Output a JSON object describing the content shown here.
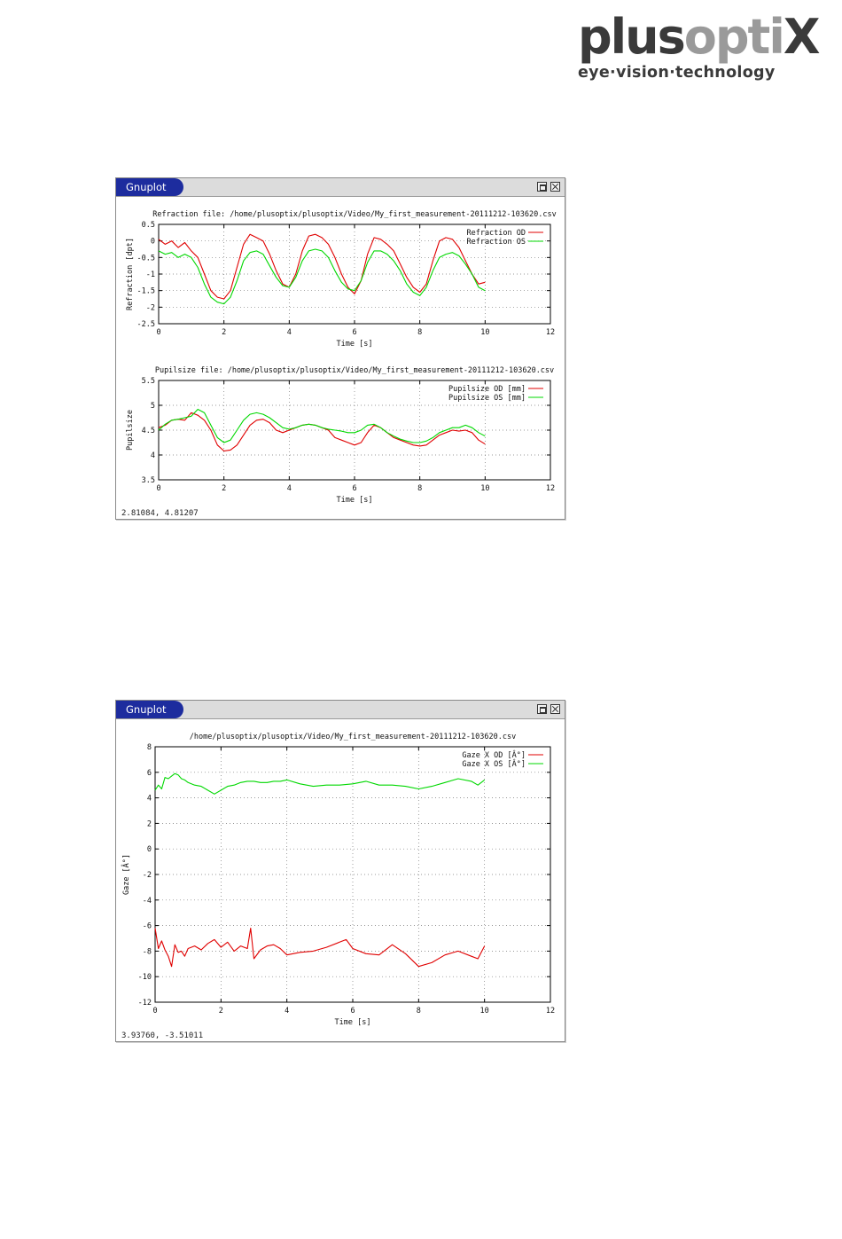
{
  "logo": {
    "main_dark": "plus",
    "main_light": "opti",
    "main_end": "X",
    "tagline": "eye·vision·technology"
  },
  "windows": [
    {
      "title": "Gnuplot",
      "coord_readout": "2.81084,  4.81207"
    },
    {
      "title": "Gnuplot",
      "coord_readout": "3.93760, -3.51011"
    }
  ],
  "colors": {
    "series_od": "#e00000",
    "series_os": "#00d800",
    "title_tab": "#1d2c9e"
  },
  "chart_data": [
    {
      "type": "line",
      "title": "Refraction file: /home/plusoptix/plusoptix/Video/My_first_measurement-20111212-103620.csv",
      "xlabel": "Time [s]",
      "ylabel": "Refraction [dpt]",
      "xlim": [
        0,
        12
      ],
      "ylim": [
        -2.5,
        0.5
      ],
      "xticks": [
        0,
        2,
        4,
        6,
        8,
        10,
        12
      ],
      "yticks": [
        -2.5,
        -2,
        -1.5,
        -1,
        -0.5,
        0,
        0.5
      ],
      "ytick_labels": [
        "-2.5",
        "-2",
        "-1.5",
        "-1",
        "-0.5",
        "0",
        "0.5"
      ],
      "grid": true,
      "legend": "top-right",
      "series": [
        {
          "name": "Refraction OD",
          "color": "#e00000",
          "x": [
            0,
            0.2,
            0.4,
            0.6,
            0.8,
            1.0,
            1.2,
            1.4,
            1.6,
            1.8,
            2.0,
            2.2,
            2.4,
            2.6,
            2.8,
            3.0,
            3.2,
            3.4,
            3.6,
            3.8,
            4.0,
            4.2,
            4.4,
            4.6,
            4.8,
            5.0,
            5.2,
            5.4,
            5.6,
            5.8,
            6.0,
            6.2,
            6.4,
            6.6,
            6.8,
            7.0,
            7.2,
            7.4,
            7.6,
            7.8,
            8.0,
            8.2,
            8.4,
            8.6,
            8.8,
            9.0,
            9.2,
            9.4,
            9.6,
            9.8,
            10.0
          ],
          "y": [
            0.05,
            -0.1,
            0.0,
            -0.2,
            -0.05,
            -0.3,
            -0.5,
            -1.0,
            -1.5,
            -1.7,
            -1.75,
            -1.5,
            -0.8,
            -0.1,
            0.2,
            0.1,
            0.0,
            -0.4,
            -0.9,
            -1.3,
            -1.4,
            -1.0,
            -0.3,
            0.15,
            0.2,
            0.1,
            -0.1,
            -0.5,
            -1.0,
            -1.4,
            -1.6,
            -1.2,
            -0.4,
            0.1,
            0.05,
            -0.1,
            -0.3,
            -0.7,
            -1.1,
            -1.4,
            -1.55,
            -1.3,
            -0.6,
            0.0,
            0.1,
            0.05,
            -0.2,
            -0.6,
            -1.0,
            -1.3,
            -1.25
          ]
        },
        {
          "name": "Refraction OS",
          "color": "#00d800",
          "x": [
            0,
            0.2,
            0.4,
            0.6,
            0.8,
            1.0,
            1.2,
            1.4,
            1.6,
            1.8,
            2.0,
            2.2,
            2.4,
            2.6,
            2.8,
            3.0,
            3.2,
            3.4,
            3.6,
            3.8,
            4.0,
            4.2,
            4.4,
            4.6,
            4.8,
            5.0,
            5.2,
            5.4,
            5.6,
            5.8,
            6.0,
            6.2,
            6.4,
            6.6,
            6.8,
            7.0,
            7.2,
            7.4,
            7.6,
            7.8,
            8.0,
            8.2,
            8.4,
            8.6,
            8.8,
            9.0,
            9.2,
            9.4,
            9.6,
            9.8,
            10.0
          ],
          "y": [
            -0.3,
            -0.4,
            -0.35,
            -0.5,
            -0.4,
            -0.5,
            -0.8,
            -1.3,
            -1.7,
            -1.85,
            -1.9,
            -1.7,
            -1.2,
            -0.6,
            -0.35,
            -0.3,
            -0.4,
            -0.75,
            -1.1,
            -1.35,
            -1.4,
            -1.1,
            -0.6,
            -0.3,
            -0.25,
            -0.3,
            -0.5,
            -0.9,
            -1.25,
            -1.45,
            -1.5,
            -1.2,
            -0.65,
            -0.3,
            -0.3,
            -0.4,
            -0.6,
            -0.9,
            -1.3,
            -1.55,
            -1.65,
            -1.4,
            -0.9,
            -0.5,
            -0.4,
            -0.35,
            -0.45,
            -0.7,
            -1.0,
            -1.4,
            -1.5
          ]
        }
      ]
    },
    {
      "type": "line",
      "title": "Pupilsize file: /home/plusoptix/plusoptix/Video/My_first_measurement-20111212-103620.csv",
      "xlabel": "Time [s]",
      "ylabel": "Pupilsize",
      "xlim": [
        0,
        12
      ],
      "ylim": [
        3.5,
        5.5
      ],
      "xticks": [
        0,
        2,
        4,
        6,
        8,
        10,
        12
      ],
      "yticks": [
        3.5,
        4,
        4.5,
        5,
        5.5
      ],
      "ytick_labels": [
        "3.5",
        "4",
        "4.5",
        "5",
        "5.5"
      ],
      "grid": true,
      "legend": "top-right",
      "series": [
        {
          "name": "Pupilsize OD [mm]",
          "color": "#e00000",
          "x": [
            0,
            0.2,
            0.4,
            0.6,
            0.8,
            1.0,
            1.2,
            1.4,
            1.6,
            1.8,
            2.0,
            2.2,
            2.4,
            2.6,
            2.8,
            3.0,
            3.2,
            3.4,
            3.6,
            3.8,
            4.0,
            4.2,
            4.4,
            4.6,
            4.8,
            5.0,
            5.2,
            5.4,
            5.6,
            5.8,
            6.0,
            6.2,
            6.4,
            6.6,
            6.8,
            7.0,
            7.2,
            7.4,
            7.6,
            7.8,
            8.0,
            8.2,
            8.4,
            8.6,
            8.8,
            9.0,
            9.2,
            9.4,
            9.6,
            9.8,
            10.0
          ],
          "y": [
            4.55,
            4.6,
            4.7,
            4.72,
            4.7,
            4.85,
            4.8,
            4.7,
            4.5,
            4.2,
            4.08,
            4.1,
            4.2,
            4.4,
            4.6,
            4.7,
            4.72,
            4.65,
            4.5,
            4.45,
            4.5,
            4.55,
            4.6,
            4.62,
            4.6,
            4.55,
            4.5,
            4.35,
            4.3,
            4.25,
            4.2,
            4.25,
            4.45,
            4.6,
            4.55,
            4.45,
            4.35,
            4.3,
            4.25,
            4.2,
            4.18,
            4.2,
            4.3,
            4.4,
            4.45,
            4.5,
            4.48,
            4.5,
            4.45,
            4.3,
            4.22
          ]
        },
        {
          "name": "Pupilsize OS [mm]",
          "color": "#00d800",
          "x": [
            0,
            0.2,
            0.4,
            0.6,
            0.8,
            1.0,
            1.2,
            1.4,
            1.6,
            1.8,
            2.0,
            2.2,
            2.4,
            2.6,
            2.8,
            3.0,
            3.2,
            3.4,
            3.6,
            3.8,
            4.0,
            4.2,
            4.4,
            4.6,
            4.8,
            5.0,
            5.2,
            5.4,
            5.6,
            5.8,
            6.0,
            6.2,
            6.4,
            6.6,
            6.8,
            7.0,
            7.2,
            7.4,
            7.6,
            7.8,
            8.0,
            8.2,
            8.4,
            8.6,
            8.8,
            9.0,
            9.2,
            9.4,
            9.6,
            9.8,
            10.0
          ],
          "y": [
            4.5,
            4.62,
            4.7,
            4.72,
            4.75,
            4.78,
            4.92,
            4.85,
            4.6,
            4.35,
            4.25,
            4.3,
            4.5,
            4.7,
            4.82,
            4.85,
            4.82,
            4.75,
            4.65,
            4.55,
            4.52,
            4.55,
            4.6,
            4.62,
            4.6,
            4.55,
            4.52,
            4.5,
            4.48,
            4.45,
            4.45,
            4.5,
            4.6,
            4.62,
            4.55,
            4.45,
            4.38,
            4.32,
            4.28,
            4.25,
            4.25,
            4.28,
            4.35,
            4.45,
            4.5,
            4.55,
            4.55,
            4.6,
            4.55,
            4.45,
            4.38
          ]
        }
      ]
    },
    {
      "type": "line",
      "title": "/home/plusoptix/plusoptix/Video/My_first_measurement-20111212-103620.csv",
      "xlabel": "Time [s]",
      "ylabel": "Gaze [Â°]",
      "xlim": [
        0,
        12
      ],
      "ylim": [
        -12,
        8
      ],
      "xticks": [
        0,
        2,
        4,
        6,
        8,
        10,
        12
      ],
      "yticks": [
        -12,
        -10,
        -8,
        -6,
        -4,
        -2,
        0,
        2,
        4,
        6,
        8
      ],
      "ytick_labels": [
        "-12",
        "-10",
        "-8",
        "-6",
        "-4",
        "-2",
        "0",
        "2",
        "4",
        "6",
        "8"
      ],
      "grid": true,
      "legend": "top-right",
      "series": [
        {
          "name": "Gaze X OD [Â°]",
          "color": "#e00000",
          "x": [
            0,
            0.1,
            0.2,
            0.3,
            0.4,
            0.5,
            0.6,
            0.7,
            0.8,
            0.9,
            1.0,
            1.2,
            1.4,
            1.6,
            1.8,
            2.0,
            2.2,
            2.4,
            2.6,
            2.8,
            2.9,
            3.0,
            3.2,
            3.4,
            3.6,
            3.8,
            4.0,
            4.4,
            4.8,
            5.2,
            5.6,
            5.8,
            6.0,
            6.4,
            6.8,
            7.2,
            7.6,
            8.0,
            8.4,
            8.8,
            9.2,
            9.6,
            9.8,
            10.0
          ],
          "y": [
            -6.2,
            -7.8,
            -7.2,
            -7.9,
            -8.4,
            -9.2,
            -7.5,
            -8.1,
            -8.0,
            -8.4,
            -7.8,
            -7.6,
            -7.9,
            -7.4,
            -7.1,
            -7.7,
            -7.3,
            -8.0,
            -7.6,
            -7.8,
            -6.2,
            -8.6,
            -7.9,
            -7.6,
            -7.5,
            -7.8,
            -8.3,
            -8.1,
            -8.0,
            -7.7,
            -7.3,
            -7.1,
            -7.8,
            -8.2,
            -8.3,
            -7.5,
            -8.2,
            -9.2,
            -8.9,
            -8.3,
            -8.0,
            -8.4,
            -8.6,
            -7.6
          ]
        },
        {
          "name": "Gaze X OS [Â°]",
          "color": "#00d800",
          "x": [
            0,
            0.1,
            0.2,
            0.3,
            0.4,
            0.5,
            0.6,
            0.7,
            0.8,
            0.9,
            1.0,
            1.2,
            1.4,
            1.6,
            1.8,
            2.0,
            2.2,
            2.4,
            2.6,
            2.8,
            3.0,
            3.2,
            3.4,
            3.6,
            3.8,
            4.0,
            4.4,
            4.8,
            5.2,
            5.6,
            6.0,
            6.4,
            6.8,
            7.2,
            7.6,
            8.0,
            8.4,
            8.8,
            9.2,
            9.6,
            9.8,
            10.0
          ],
          "y": [
            4.6,
            5.0,
            4.7,
            5.6,
            5.5,
            5.7,
            5.9,
            5.8,
            5.5,
            5.4,
            5.2,
            5.0,
            4.9,
            4.6,
            4.3,
            4.6,
            4.9,
            5.0,
            5.2,
            5.3,
            5.3,
            5.2,
            5.2,
            5.3,
            5.3,
            5.4,
            5.1,
            4.9,
            5.0,
            5.0,
            5.1,
            5.3,
            5.0,
            5.0,
            4.9,
            4.7,
            4.9,
            5.2,
            5.5,
            5.3,
            5.0,
            5.4
          ]
        }
      ]
    }
  ]
}
